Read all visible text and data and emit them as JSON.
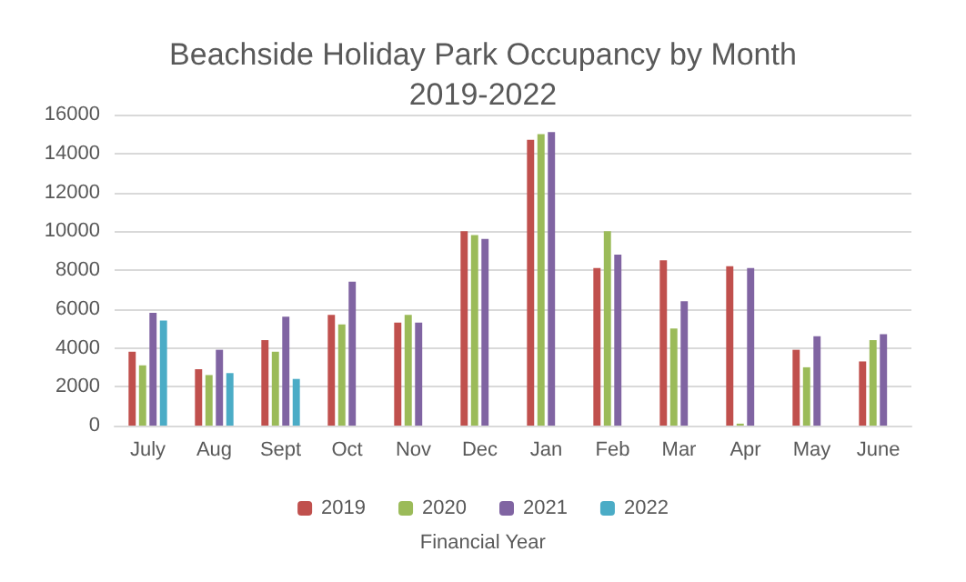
{
  "chart_data": {
    "type": "bar",
    "title": "Beachside Holiday Park Occupancy by Month\n2019-2022",
    "legend_title": "Financial Year",
    "categories": [
      "July",
      "Aug",
      "Sept",
      "Oct",
      "Nov",
      "Dec",
      "Jan",
      "Feb",
      "Mar",
      "Apr",
      "May",
      "June"
    ],
    "series": [
      {
        "name": "2019",
        "color": "#c0504d",
        "values": [
          3800,
          2900,
          4400,
          5700,
          5300,
          10000,
          14700,
          8100,
          8500,
          8200,
          3900,
          3300
        ]
      },
      {
        "name": "2020",
        "color": "#9bbb59",
        "values": [
          3100,
          2600,
          3800,
          5200,
          5700,
          9800,
          15000,
          10000,
          5000,
          100,
          3000,
          4400
        ]
      },
      {
        "name": "2021",
        "color": "#8064a2",
        "values": [
          5800,
          3900,
          5600,
          7400,
          5300,
          9600,
          15100,
          8800,
          6400,
          8100,
          4600,
          4700
        ]
      },
      {
        "name": "2022",
        "color": "#4bacc6",
        "values": [
          5400,
          2700,
          2400,
          null,
          null,
          null,
          null,
          null,
          null,
          null,
          null,
          null
        ]
      }
    ],
    "ylim": [
      0,
      16000
    ],
    "yticks": [
      0,
      2000,
      4000,
      6000,
      8000,
      10000,
      12000,
      14000,
      16000
    ],
    "grid": "y",
    "legend": "bottom"
  }
}
